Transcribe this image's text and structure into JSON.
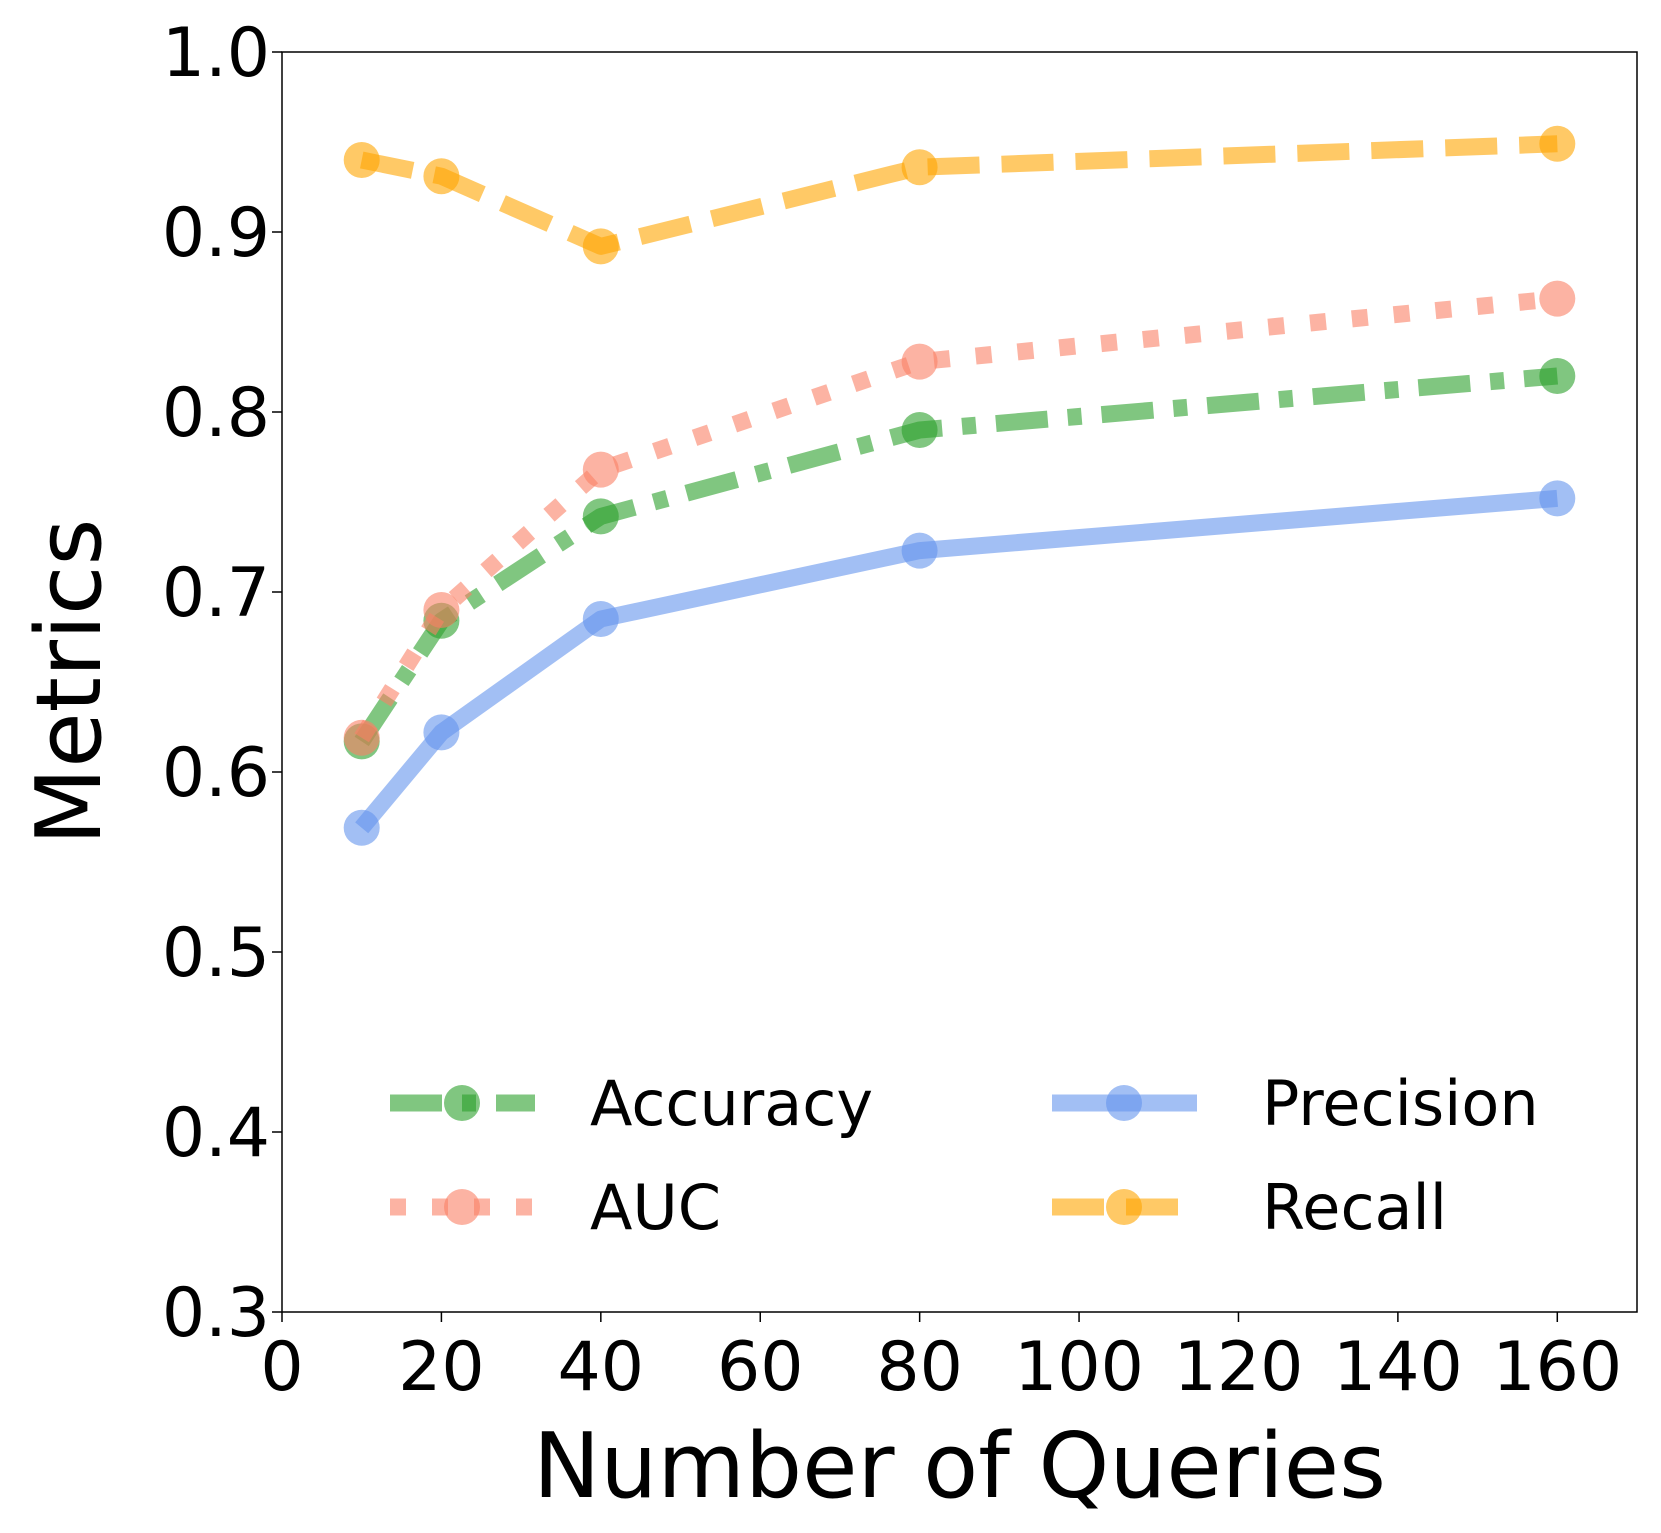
{
  "chart_data": {
    "type": "line",
    "title": "",
    "xlabel": "Number of Queries",
    "ylabel": "Metrics",
    "xlim": [
      0,
      170
    ],
    "ylim": [
      0.3,
      1.0
    ],
    "xticks": [
      0,
      20,
      40,
      60,
      80,
      100,
      120,
      140,
      160
    ],
    "xtick_labels": [
      "0",
      "20",
      "40",
      "60",
      "80",
      "100",
      "120",
      "140",
      "160"
    ],
    "yticks": [
      0.3,
      0.4,
      0.5,
      0.6,
      0.7,
      0.8,
      0.9,
      1.0
    ],
    "ytick_labels": [
      "0.3",
      "0.4",
      "0.5",
      "0.6",
      "0.7",
      "0.8",
      "0.9",
      "1.0"
    ],
    "grid": false,
    "legend_position": "lower-center, two columns",
    "x": [
      10,
      20,
      40,
      80,
      160
    ],
    "series": [
      {
        "name": "Accuracy",
        "values": [
          0.617,
          0.684,
          0.742,
          0.79,
          0.82
        ],
        "color": "#2ca02c",
        "style": "dashdot"
      },
      {
        "name": "AUC",
        "values": [
          0.619,
          0.69,
          0.768,
          0.828,
          0.863
        ],
        "color": "#fa8066",
        "style": "dotted"
      },
      {
        "name": "Precision",
        "values": [
          0.569,
          0.622,
          0.685,
          0.723,
          0.752
        ],
        "color": "#6495ed",
        "style": "solid"
      },
      {
        "name": "Recall",
        "values": [
          0.94,
          0.931,
          0.892,
          0.936,
          0.949
        ],
        "color": "#ffa500",
        "style": "dashed"
      }
    ]
  }
}
